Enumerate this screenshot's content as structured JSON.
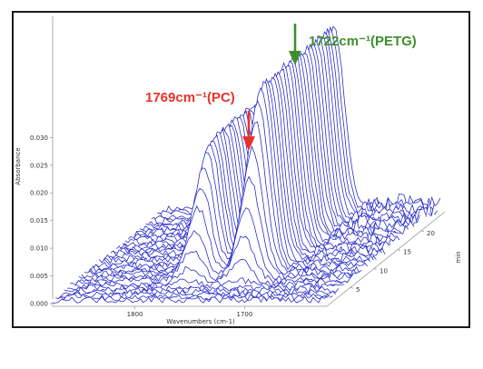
{
  "chart_data": {
    "type": "line",
    "render": "3d-waterfall",
    "title": "",
    "xlabel": "Wavenumbers (cm-1)",
    "ylabel": "Absorbance",
    "zlabel": "min",
    "x_ticks": [
      "1800",
      "1700"
    ],
    "y_ticks": [
      "0.000",
      "0.005",
      "0.010",
      "0.015",
      "0.020",
      "0.025",
      "0.030"
    ],
    "z_ticks": [
      "5",
      "10",
      "15",
      "20"
    ],
    "xlim": [
      1875,
      1625
    ],
    "ylim": [
      0.0,
      0.034
    ],
    "zlim": [
      0,
      25
    ],
    "grid": false,
    "series_color": "#1f22c8",
    "peaks": [
      {
        "label": "1769cm⁻¹(PC)",
        "x": 1769,
        "y": 0.0195,
        "color": "#e8322b"
      },
      {
        "label": "1722cm⁻¹(PETG)",
        "x": 1722,
        "y": 0.033,
        "color": "#3e8e2b"
      }
    ]
  }
}
